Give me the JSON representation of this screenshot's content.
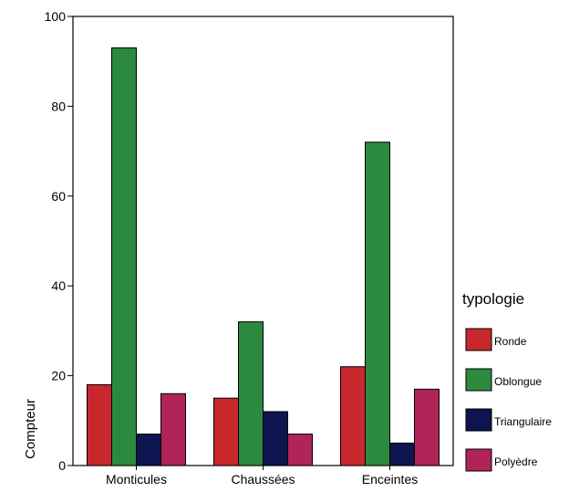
{
  "chart_data": {
    "type": "bar",
    "categories": [
      "Monticules",
      "Chaussées",
      "Enceintes"
    ],
    "series": [
      {
        "name": "Ronde",
        "values": [
          18,
          15,
          22
        ],
        "color": "#c8282d"
      },
      {
        "name": "Oblongue",
        "values": [
          93,
          32,
          72
        ],
        "color": "#2b8a3e"
      },
      {
        "name": "Triangulaire",
        "values": [
          7,
          12,
          5
        ],
        "color": "#0e1450"
      },
      {
        "name": "Polyèdre",
        "values": [
          16,
          7,
          17
        ],
        "color": "#b0245a"
      }
    ],
    "ylabel": "Compteur",
    "xlabel": "",
    "ylim": [
      0,
      100
    ],
    "yticks": [
      0,
      20,
      40,
      60,
      80,
      100
    ],
    "legend_title": "typologie",
    "legend_position": "right"
  }
}
